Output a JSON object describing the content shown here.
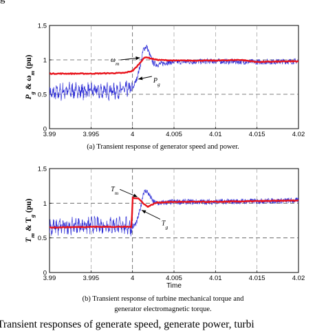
{
  "page": {
    "top_cutoff_text": "g",
    "bottom_cutoff_text": "Transient responses of generate speed, generate power, turbi"
  },
  "colors": {
    "red_series": "#e8141c",
    "blue_series": "#2f2fd6",
    "ref_line": "#555555"
  },
  "chart_data": [
    {
      "type": "line",
      "caption": "(a) Transient response of generator speed and power.",
      "ylabel": "P_g & ω_m (pu)",
      "xlabel": "",
      "xlim": [
        3.99,
        4.02
      ],
      "ylim": [
        0,
        1.5
      ],
      "xticks": [
        "3.99",
        "3.995",
        "4",
        "4.005",
        "4.01",
        "4.015",
        "4.02"
      ],
      "yticks": [
        "0",
        "0.5",
        "1",
        "1.5"
      ],
      "grid": "dashed at 0.5, 1 and t = 4",
      "series": [
        {
          "name": "ω_m",
          "color": "red",
          "x": [
            3.99,
            3.995,
            3.999,
            4.0,
            4.0005,
            4.001,
            4.0013,
            4.0017,
            4.0022,
            4.003,
            4.005,
            4.01,
            4.013,
            4.015,
            4.02
          ],
          "y": [
            0.8,
            0.8,
            0.81,
            0.84,
            0.9,
            0.97,
            1.02,
            1.04,
            1.02,
            1.0,
            0.99,
            0.99,
            1.0,
            0.97,
            0.98
          ]
        },
        {
          "name": "P_g",
          "color": "blue",
          "x": [
            3.99,
            3.992,
            3.995,
            3.998,
            4.0,
            4.0005,
            4.001,
            4.0013,
            4.0017,
            4.002,
            4.0025,
            4.003,
            4.004,
            4.005,
            4.01,
            4.015,
            4.02
          ],
          "y": [
            0.5,
            0.55,
            0.55,
            0.55,
            0.58,
            0.72,
            0.95,
            1.15,
            1.2,
            1.1,
            0.95,
            0.93,
            0.96,
            0.97,
            0.98,
            0.97,
            0.98
          ]
        }
      ],
      "annotations": [
        {
          "text": "ω_m",
          "x": 3.9984,
          "y": 0.97
        },
        {
          "text": "P_g",
          "x": 4.0025,
          "y": 0.67
        }
      ]
    },
    {
      "type": "line",
      "caption": "(b) Transient response of turbine mechanical torque and generator electromagnetic torque.",
      "caption_lines": [
        "(b) Transient response of turbine mechanical torque and",
        "generator electromagnetic torque."
      ],
      "ylabel": "T_m & T_g (pu)",
      "xlabel": "Time",
      "xlim": [
        3.99,
        4.02
      ],
      "ylim": [
        0,
        1.5
      ],
      "xticks": [
        "3.99",
        "3.995",
        "4",
        "4.005",
        "4.01",
        "4.015",
        "4.02"
      ],
      "yticks": [
        "0",
        "0.5",
        "1",
        "1.5"
      ],
      "grid": "dashed at 0.5, 1 and t = 4",
      "series": [
        {
          "name": "T_m",
          "color": "red",
          "x": [
            3.99,
            3.995,
            3.9999,
            4.0,
            4.0007,
            4.0013,
            4.0018,
            4.0022,
            4.0027,
            4.003,
            4.005,
            4.01,
            4.015,
            4.02
          ],
          "y": [
            0.65,
            0.66,
            0.66,
            1.08,
            1.07,
            1.0,
            0.95,
            0.97,
            1.0,
            1.01,
            1.02,
            1.02,
            1.03,
            1.04
          ]
        },
        {
          "name": "T_g",
          "color": "blue",
          "x": [
            3.99,
            3.993,
            3.996,
            3.999,
            4.0,
            4.0005,
            4.001,
            4.0013,
            4.0017,
            4.0021,
            4.0025,
            4.003,
            4.005,
            4.01,
            4.015,
            4.02
          ],
          "y": [
            0.65,
            0.68,
            0.68,
            0.68,
            0.65,
            0.72,
            0.95,
            1.15,
            1.18,
            1.1,
            1.02,
            1.0,
            1.02,
            1.02,
            1.03,
            1.04
          ]
        }
      ],
      "annotations": [
        {
          "text": "T_m",
          "x": 3.9983,
          "y": 1.17
        },
        {
          "text": "T_g",
          "x": 4.0035,
          "y": 0.68
        }
      ]
    }
  ]
}
